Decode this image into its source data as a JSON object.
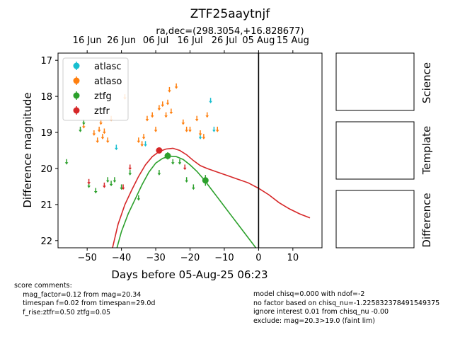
{
  "chart_data": {
    "type": "scatter",
    "title": "ZTF25aaytnjf",
    "subtitle": "ra,dec=(298.3054,+16.828677)",
    "xlabel": "Days before 05-Aug-25 06:23",
    "ylabel": "Difference magnitude",
    "xlim": [
      -58.5,
      18.5
    ],
    "ylim": [
      22.2,
      16.8
    ],
    "y_inverted": true,
    "xticks": [
      -50,
      -40,
      -30,
      -20,
      -10,
      0,
      10
    ],
    "xtick_labels": [
      "−50",
      "−40",
      "−30",
      "−20",
      "−10",
      "0",
      "10"
    ],
    "yticks": [
      17,
      18,
      19,
      20,
      21,
      22
    ],
    "top_axis": {
      "tick_x": [
        -50,
        -40,
        -30,
        -20,
        -10,
        0,
        10
      ],
      "labels": [
        "16 Jun",
        "26 Jun",
        "06 Jul",
        "16 Jul",
        "26 Jul",
        "05 Aug",
        "15 Aug"
      ]
    },
    "legend_placement": "upper-left",
    "vertical_line_x": 0,
    "series": [
      {
        "name": "atlasc",
        "color": "#17becf",
        "upper_limits": [
          [
            -41.5,
            19.4
          ],
          [
            -33,
            19.3
          ],
          [
            -17,
            19.1
          ],
          [
            -14,
            18.1
          ],
          [
            -13,
            18.9
          ]
        ],
        "detections": []
      },
      {
        "name": "atlaso",
        "color": "#ff7f0e",
        "upper_limits": [
          [
            -51,
            18.8
          ],
          [
            -48,
            19.0
          ],
          [
            -47,
            19.2
          ],
          [
            -46.5,
            18.9
          ],
          [
            -46,
            18.7
          ],
          [
            -45.5,
            19.1
          ],
          [
            -45,
            18.95
          ],
          [
            -44,
            19.2
          ],
          [
            -43,
            18.6
          ],
          [
            -39,
            18.0
          ],
          [
            -35,
            19.2
          ],
          [
            -34,
            19.3
          ],
          [
            -33.5,
            19.1
          ],
          [
            -32.5,
            18.6
          ],
          [
            -31,
            18.5
          ],
          [
            -30,
            18.9
          ],
          [
            -29,
            18.3
          ],
          [
            -28,
            18.2
          ],
          [
            -27,
            18.5
          ],
          [
            -26.5,
            18.15
          ],
          [
            -26,
            17.8
          ],
          [
            -25.5,
            18.4
          ],
          [
            -24,
            17.7
          ],
          [
            -22,
            18.7
          ],
          [
            -21,
            18.9
          ],
          [
            -20,
            18.9
          ],
          [
            -18,
            18.6
          ],
          [
            -17,
            19.0
          ],
          [
            -16,
            19.1
          ],
          [
            -15,
            18.5
          ],
          [
            -12,
            18.9
          ]
        ],
        "detections": []
      },
      {
        "name": "ztfg",
        "color": "#2ca02c",
        "upper_limits": [
          [
            -56,
            19.8
          ],
          [
            -52,
            18.9
          ],
          [
            -51,
            18.7
          ],
          [
            -49.5,
            20.45
          ],
          [
            -47.5,
            20.6
          ],
          [
            -44,
            20.3
          ],
          [
            -43,
            20.4
          ],
          [
            -42,
            20.3
          ],
          [
            -40,
            20.5
          ],
          [
            -37.5,
            20.1
          ],
          [
            -35,
            20.8
          ],
          [
            -29,
            20.1
          ],
          [
            -25,
            19.8
          ],
          [
            -23,
            19.8
          ],
          [
            -21,
            20.3
          ],
          [
            -19,
            20.5
          ]
        ],
        "detections": [
          [
            -26.5,
            19.65,
            0.1
          ],
          [
            -15.5,
            20.33,
            0.15
          ]
        ]
      },
      {
        "name": "ztfr",
        "color": "#d62728",
        "upper_limits": [
          [
            -49.5,
            20.35
          ],
          [
            -45,
            20.45
          ],
          [
            -39.5,
            20.5
          ],
          [
            -37.5,
            19.95
          ],
          [
            -21.5,
            19.95
          ]
        ],
        "detections": [
          [
            -29,
            19.5,
            0.07
          ]
        ]
      }
    ],
    "model_curves": [
      {
        "color": "#d62728",
        "points": [
          [
            -42.6,
            22.2
          ],
          [
            -41,
            21.55
          ],
          [
            -39,
            21.0
          ],
          [
            -37,
            20.6
          ],
          [
            -35,
            20.22
          ],
          [
            -33,
            19.9
          ],
          [
            -31,
            19.67
          ],
          [
            -29,
            19.53
          ],
          [
            -27,
            19.46
          ],
          [
            -25,
            19.44
          ],
          [
            -23,
            19.5
          ],
          [
            -21,
            19.62
          ],
          [
            -19,
            19.78
          ],
          [
            -17,
            19.92
          ],
          [
            -15,
            20.0
          ],
          [
            -12,
            20.1
          ],
          [
            -9,
            20.2
          ],
          [
            -6,
            20.3
          ],
          [
            -3,
            20.4
          ],
          [
            0,
            20.55
          ],
          [
            3,
            20.73
          ],
          [
            6,
            20.95
          ],
          [
            9,
            21.12
          ],
          [
            12,
            21.26
          ],
          [
            15,
            21.37
          ]
        ]
      },
      {
        "color": "#2ca02c",
        "points": [
          [
            -41.3,
            22.2
          ],
          [
            -40,
            21.75
          ],
          [
            -38,
            21.25
          ],
          [
            -36,
            20.85
          ],
          [
            -34,
            20.45
          ],
          [
            -32,
            20.1
          ],
          [
            -30,
            19.85
          ],
          [
            -28,
            19.72
          ],
          [
            -26,
            19.66
          ],
          [
            -24,
            19.67
          ],
          [
            -22,
            19.75
          ],
          [
            -20,
            19.9
          ],
          [
            -18,
            20.08
          ],
          [
            -16,
            20.3
          ],
          [
            -14,
            20.55
          ],
          [
            -12,
            20.8
          ],
          [
            -10,
            21.05
          ],
          [
            -8,
            21.3
          ],
          [
            -6,
            21.55
          ],
          [
            -4,
            21.8
          ],
          [
            -2,
            22.05
          ],
          [
            -0.8,
            22.2
          ]
        ]
      }
    ],
    "side_panels": [
      "Science",
      "Template",
      "Difference"
    ]
  },
  "comments_left": [
    "score comments:",
    "    mag_factor=0.12 from mag=20.34",
    "    timespan f=0.02 from timespan=29.0d",
    "    f_rise:ztfr=0.50 ztfg=0.05"
  ],
  "comments_right": [
    "model chisq=0.000 with ndof=-2",
    "no factor based on chisq_nu=-1.225832378491549375",
    "ignore interest 0.01 from chisq_nu -0.00",
    "exclude: mag=20.3>19.0 (faint lim)"
  ]
}
